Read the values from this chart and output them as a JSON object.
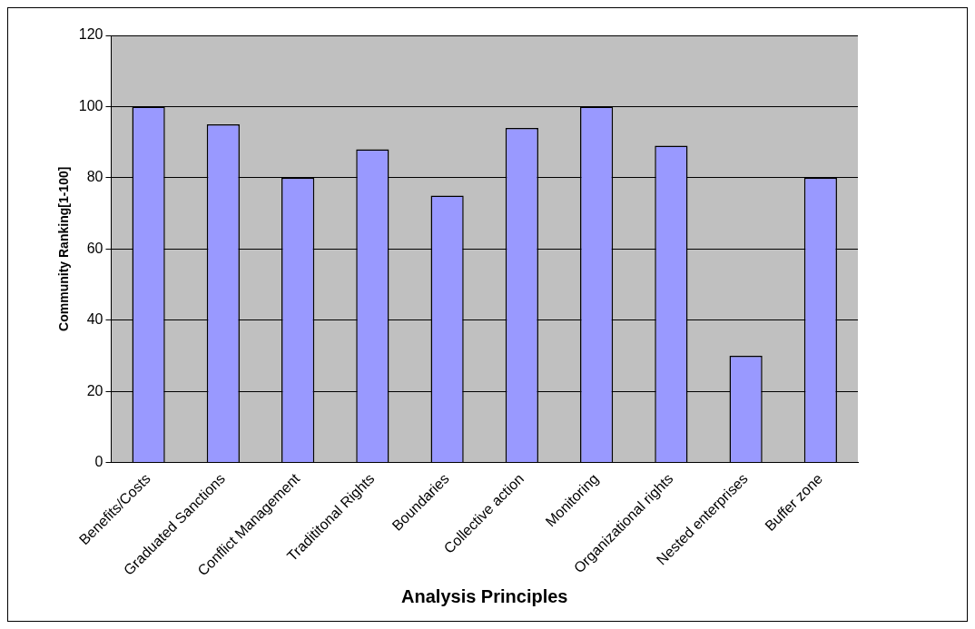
{
  "chart_data": {
    "type": "bar",
    "xlabel": "Analysis Principles",
    "ylabel": "Community Ranking[1-100]",
    "categories": [
      "Benefits/Costs",
      "Graduated Sanctions",
      "Conflict Management",
      "Tradititonal Rights",
      "Boundaries",
      "Collective action",
      "Monitoring",
      "Organizational rights",
      "Nested enterprises",
      "Buffer zone"
    ],
    "values": [
      100,
      95,
      80,
      88,
      75,
      94,
      100,
      89,
      30,
      80
    ],
    "color": "#9999ff",
    "ylim": [
      0,
      120
    ],
    "yticks": [
      0,
      20,
      40,
      60,
      80,
      100,
      120
    ],
    "grid": "y",
    "legend": false
  }
}
